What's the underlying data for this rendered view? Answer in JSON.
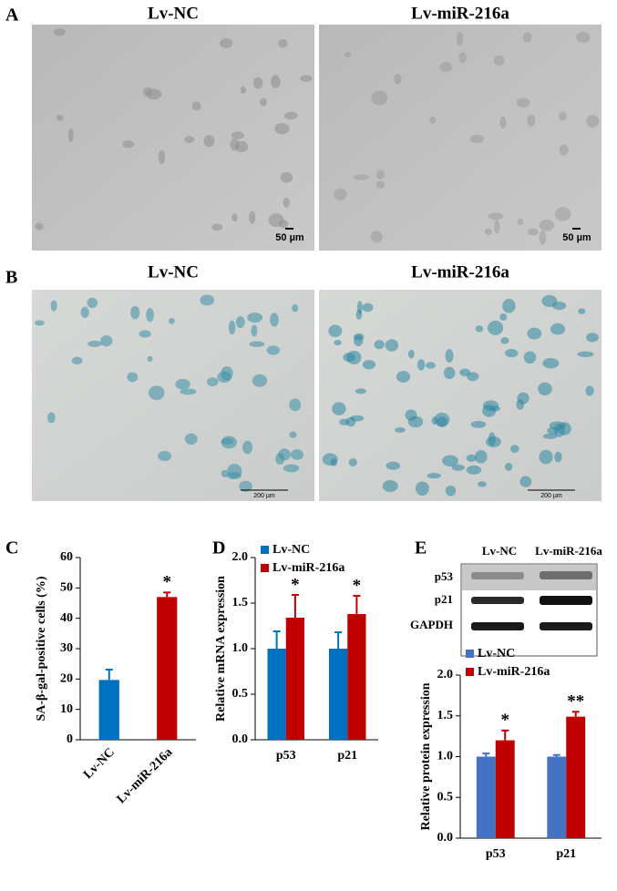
{
  "panels": [
    {
      "label": "A",
      "titles": [
        "Lv-NC",
        "Lv-miR-216a"
      ],
      "scale_bar": "50 µm"
    },
    {
      "label": "B",
      "titles": [
        "Lv-NC",
        "Lv-miR-216a"
      ],
      "scale_bar": "200 µm"
    }
  ],
  "blot": {
    "label": "E",
    "columns": [
      "Lv-NC",
      "Lv-miR-216a"
    ],
    "rows": [
      "p53",
      "p21",
      "GAPDH"
    ]
  },
  "chart_data": [
    {
      "type": "bar",
      "label": "C",
      "ylabel": "SA-β-gal-positive cells (%)",
      "categories": [
        "Lv-NC",
        "Lv-miR-216a"
      ],
      "values": [
        19.7,
        47
      ],
      "errors": [
        3.4,
        1.5
      ],
      "colors": [
        "#0070c0",
        "#c00000"
      ],
      "annotations": [
        null,
        "*"
      ],
      "ylim": [
        0,
        60
      ],
      "yticks": [
        0,
        10,
        20,
        30,
        40,
        50,
        60
      ]
    },
    {
      "type": "grouped_bar",
      "ylabel": "Relative mRNA expression",
      "label": "D",
      "categories": [
        "p53",
        "p21"
      ],
      "series": [
        {
          "name": "Lv-NC",
          "color": "#0070c0",
          "values": [
            1.0,
            1.0
          ],
          "errors": [
            0.19,
            0.18
          ]
        },
        {
          "name": "Lv-miR-216a",
          "color": "#c00000",
          "values": [
            1.34,
            1.38
          ],
          "errors": [
            0.25,
            0.2
          ]
        }
      ],
      "annotations": [
        "*",
        "*"
      ],
      "ylim": [
        0,
        2
      ],
      "yticks": [
        {
          "value": 0,
          "label": "0.0"
        },
        {
          "value": 0.5,
          "label": "0.5"
        },
        {
          "value": 1,
          "label": "1.0"
        },
        {
          "value": 1.5,
          "label": "1.5"
        },
        {
          "value": 2,
          "label": "2.0"
        }
      ]
    },
    {
      "type": "grouped_bar",
      "ylabel": "Relative protein expression",
      "categories": [
        "p53",
        "p21"
      ],
      "series": [
        {
          "name": "Lv-NC",
          "color": "#4472c4",
          "values": [
            1.0,
            1.0
          ],
          "errors": [
            0.04,
            0.02
          ]
        },
        {
          "name": "Lv-miR-216a",
          "color": "#c00000",
          "values": [
            1.2,
            1.49
          ],
          "errors": [
            0.12,
            0.06
          ]
        }
      ],
      "annotations": [
        "*",
        "**"
      ],
      "ylim": [
        0,
        2
      ],
      "yticks": [
        {
          "value": 0,
          "label": "0.0"
        },
        {
          "value": 0.5,
          "label": "0.5"
        },
        {
          "value": 1,
          "label": "1.0"
        },
        {
          "value": 1.5,
          "label": "1.5"
        },
        {
          "value": 2,
          "label": "2.0"
        }
      ]
    }
  ]
}
